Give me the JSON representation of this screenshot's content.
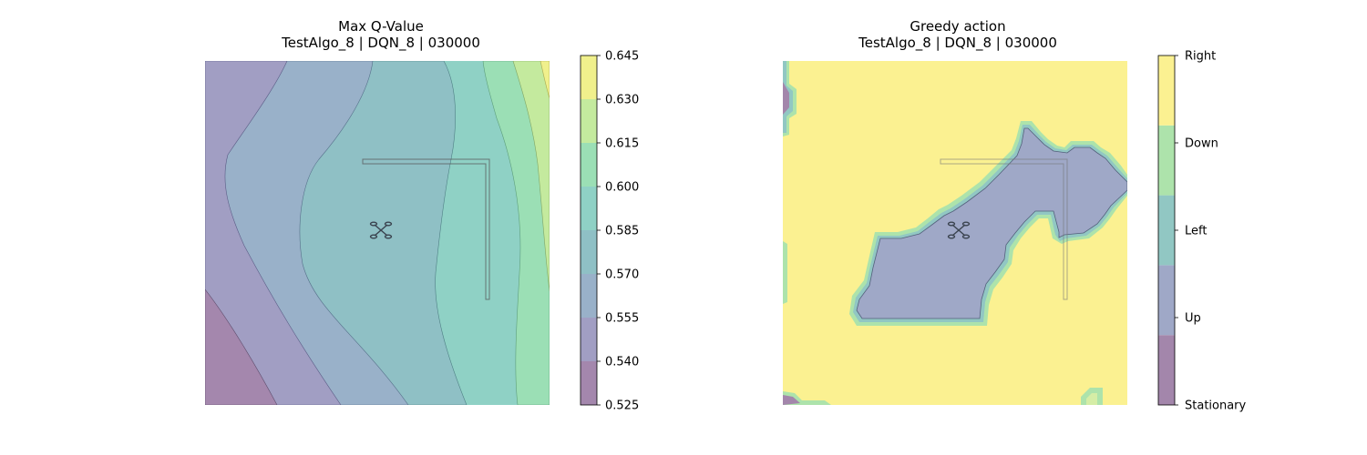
{
  "chart_data": [
    {
      "type": "heatmap",
      "title": "Max Q-Value",
      "subtitle": "TestAlgo_8 | DQN_8 | 030000",
      "xlabel": "",
      "ylabel": "",
      "colorbar": {
        "levels": [
          0.525,
          0.54,
          0.555,
          0.57,
          0.585,
          0.6,
          0.615,
          0.63,
          0.645
        ],
        "tick_labels": [
          "0.525",
          "0.540",
          "0.555",
          "0.570",
          "0.585",
          "0.600",
          "0.615",
          "0.630",
          "0.645"
        ],
        "colors": [
          "#a487ad",
          "#a19ec3",
          "#99b1c9",
          "#8fc0c5",
          "#8fd1c5",
          "#9bdfb5",
          "#c4ea9e",
          "#f0f08c"
        ]
      },
      "field_description": "Max Q-value increases left to right, from about 0.53 at left edge to about 0.64 at right edge"
    },
    {
      "type": "heatmap",
      "title": "Greedy action",
      "subtitle": "TestAlgo_8 | DQN_8 | 030000",
      "xlabel": "",
      "ylabel": "",
      "colorbar": {
        "categories": [
          "Stationary",
          "Up",
          "Left",
          "Down",
          "Right"
        ],
        "colors": [
          "#a386ab",
          "#9fa8c7",
          "#91c7c3",
          "#ade3ab",
          "#fbf191"
        ]
      },
      "regions": [
        {
          "action": "Right",
          "description": "background"
        },
        {
          "action": "Up",
          "description": "central blob"
        }
      ]
    }
  ],
  "colors": {
    "wall_stroke": "#555555",
    "axis_line": "#000000"
  }
}
